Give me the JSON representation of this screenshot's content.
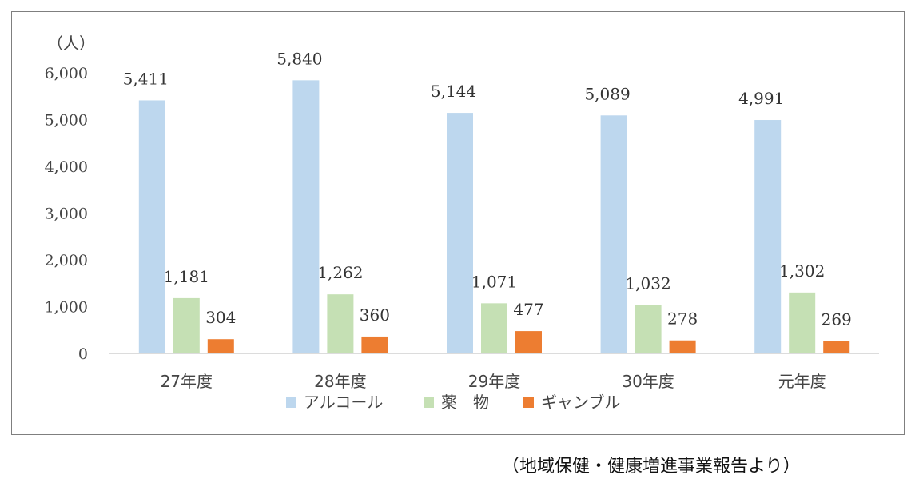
{
  "source_note": "（地域保健・健康増進事業報告より）",
  "chart_data": {
    "type": "bar",
    "unit_label": "（人）",
    "categories": [
      "27年度",
      "28年度",
      "29年度",
      "30年度",
      "元年度"
    ],
    "series": [
      {
        "name": "アルコール",
        "color": "#bdd7ee",
        "values": [
          5411,
          5840,
          5144,
          5089,
          4991
        ],
        "labels": [
          "5,411",
          "5,840",
          "5,144",
          "5,089",
          "4,991"
        ]
      },
      {
        "name": "薬　物",
        "color": "#c5e0b4",
        "values": [
          1181,
          1262,
          1071,
          1032,
          1302
        ],
        "labels": [
          "1,181",
          "1,262",
          "1,071",
          "1,032",
          "1,302"
        ]
      },
      {
        "name": "ギャンブル",
        "color": "#ed7d31",
        "values": [
          304,
          360,
          477,
          278,
          269
        ],
        "labels": [
          "304",
          "360",
          "477",
          "278",
          "269"
        ]
      }
    ],
    "ylim": [
      0,
      6000
    ],
    "yticks": [
      0,
      1000,
      2000,
      3000,
      4000,
      5000,
      6000
    ],
    "ytick_labels": [
      "0",
      "1,000",
      "2,000",
      "3,000",
      "4,000",
      "5,000",
      "6,000"
    ],
    "grid": false,
    "legend_position": "bottom"
  }
}
